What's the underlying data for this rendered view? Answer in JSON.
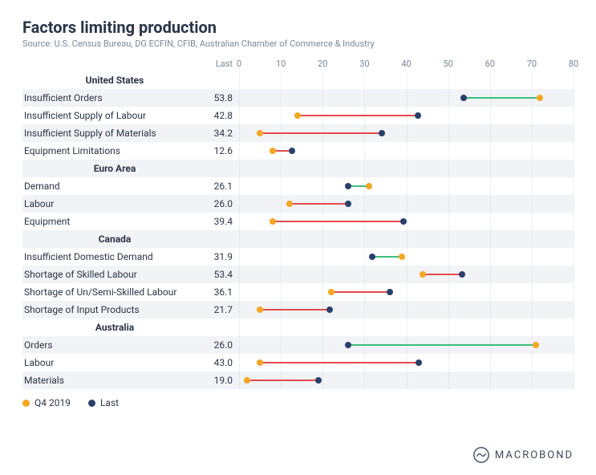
{
  "title": "Factors limiting production",
  "subtitle": "Source: U.S. Census Bureau, DG ECFIN, CFIB, Australian Chamber of Commerce & Industry",
  "column_headers": {
    "last": "Last"
  },
  "xaxis": {
    "min": 0,
    "max": 80,
    "ticks": [
      0,
      10,
      20,
      30,
      40,
      50,
      60,
      70,
      80
    ]
  },
  "colors": {
    "q4_2019": "#f5a623",
    "last": "#2a3f6b",
    "line_up": "#e24b4b",
    "line_down": "#3fbf7f",
    "grid": "#cfd6de",
    "text": "#2a3547",
    "muted": "#7a8899",
    "row_alt": "#f1f3f6",
    "bg": "#ffffff"
  },
  "fonts": {
    "title_size_pt": 15,
    "subtitle_size_pt": 8,
    "row_size_pt": 9,
    "axis_size_pt": 8,
    "family": "sans-serif"
  },
  "legend": {
    "items": [
      {
        "label": "Q4 2019",
        "color": "#f5a623"
      },
      {
        "label": "Last",
        "color": "#2a3f6b"
      }
    ]
  },
  "logo_text": "MACROBOND",
  "groups": [
    {
      "name": "United States",
      "rows": [
        {
          "label": "Insufficient Orders",
          "last": 53.8,
          "q4_2019": 72.0
        },
        {
          "label": "Insufficient Supply of Labour",
          "last": 42.8,
          "q4_2019": 14.0
        },
        {
          "label": "Insufficient Supply of Materials",
          "last": 34.2,
          "q4_2019": 5.0
        },
        {
          "label": "Equipment Limitations",
          "last": 12.6,
          "q4_2019": 8.0
        }
      ]
    },
    {
      "name": "Euro Area",
      "rows": [
        {
          "label": "Demand",
          "last": 26.1,
          "q4_2019": 31.0
        },
        {
          "label": "Labour",
          "last": 26.0,
          "q4_2019": 12.0
        },
        {
          "label": "Equipment",
          "last": 39.4,
          "q4_2019": 8.0
        }
      ]
    },
    {
      "name": "Canada",
      "rows": [
        {
          "label": "Insufficient Domestic Demand",
          "last": 31.9,
          "q4_2019": 39.0
        },
        {
          "label": "Shortage of Skilled Labour",
          "last": 53.4,
          "q4_2019": 44.0
        },
        {
          "label": "Shortage of Un/Semi-Skilled Labour",
          "last": 36.1,
          "q4_2019": 22.0
        },
        {
          "label": "Shortage of Input Products",
          "last": 21.7,
          "q4_2019": 5.0
        }
      ]
    },
    {
      "name": "Australia",
      "rows": [
        {
          "label": "Orders",
          "last": 26.0,
          "q4_2019": 71.0
        },
        {
          "label": "Labour",
          "last": 43.0,
          "q4_2019": 5.0
        },
        {
          "label": "Materials",
          "last": 19.0,
          "q4_2019": 2.0
        }
      ]
    }
  ]
}
